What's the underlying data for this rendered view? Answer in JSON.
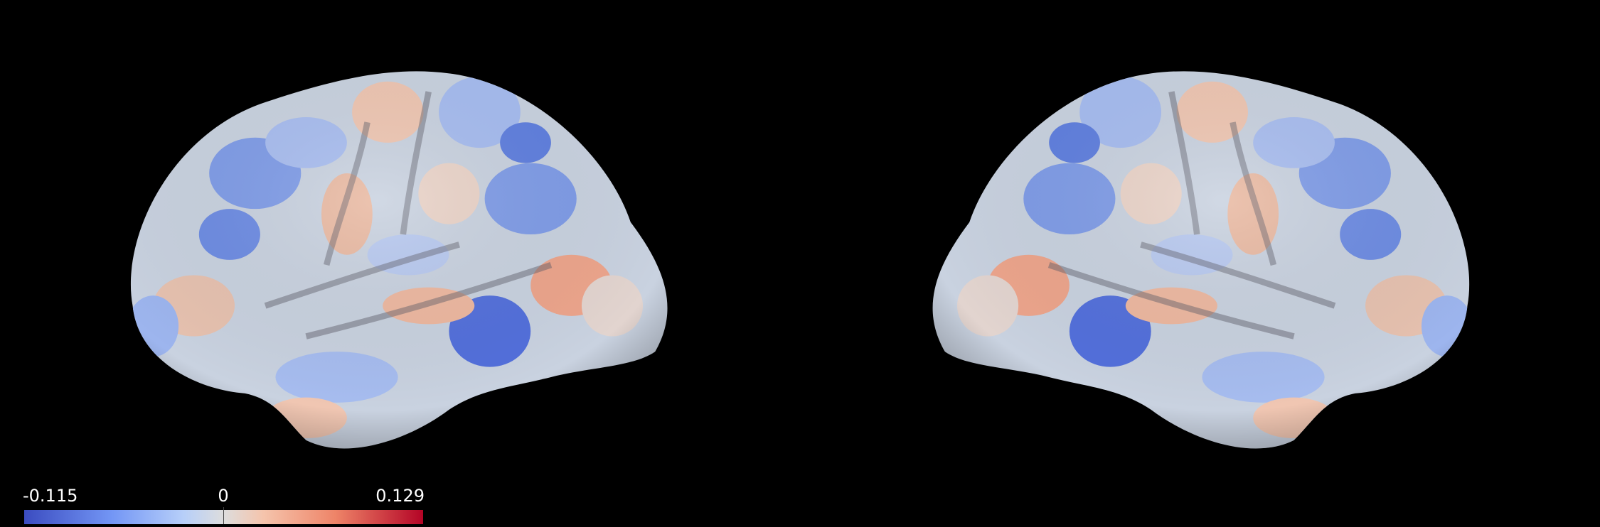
{
  "colorbar": {
    "min": -0.115,
    "center": 0,
    "max": 0.129
  }
}
